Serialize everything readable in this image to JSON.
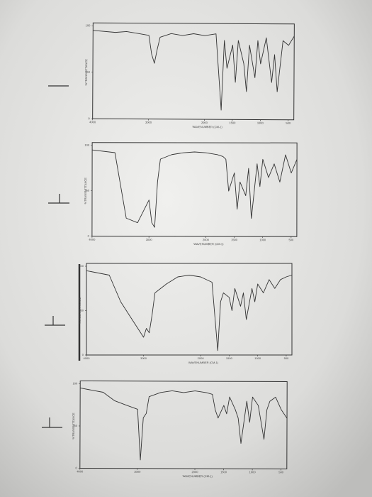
{
  "chart_data": [
    {
      "type": "line",
      "x_label": "WAVENUMBER (CM-1)",
      "y_label": "%TRANSMITTANCE",
      "color": "#333333",
      "x": [
        4000,
        3600,
        3400,
        3200,
        3000,
        2950,
        2900,
        2850,
        2800,
        2600,
        2400,
        2200,
        2000,
        1800,
        1700,
        1650,
        1600,
        1500,
        1450,
        1400,
        1300,
        1250,
        1200,
        1100,
        1050,
        1000,
        900,
        800,
        750,
        700,
        600,
        500,
        400
      ],
      "values": [
        95,
        93,
        94,
        92,
        90,
        70,
        60,
        75,
        88,
        92,
        90,
        92,
        90,
        92,
        10,
        85,
        55,
        80,
        40,
        85,
        60,
        30,
        80,
        45,
        85,
        60,
        88,
        40,
        70,
        30,
        85,
        80,
        90
      ],
      "xlim": [
        4000,
        400
      ],
      "ylim": [
        0,
        100
      ],
      "xticks": [
        4000,
        3000,
        2000,
        1500,
        1000,
        500
      ],
      "yticks": [
        0,
        50,
        100
      ]
    },
    {
      "type": "line",
      "x_label": "WAVENUMBER (CM-1)",
      "y_label": "%TRANSMITTANCE",
      "color": "#333333",
      "x": [
        4000,
        3600,
        3400,
        3200,
        3000,
        2950,
        2900,
        2850,
        2800,
        2600,
        2400,
        2200,
        2000,
        1800,
        1700,
        1650,
        1600,
        1500,
        1450,
        1400,
        1300,
        1250,
        1200,
        1100,
        1050,
        1000,
        900,
        800,
        750,
        700,
        600,
        500,
        400
      ],
      "values": [
        95,
        92,
        20,
        15,
        40,
        15,
        10,
        60,
        85,
        90,
        92,
        93,
        92,
        90,
        88,
        85,
        50,
        70,
        30,
        60,
        45,
        75,
        20,
        80,
        55,
        85,
        65,
        80,
        70,
        60,
        90,
        70,
        85
      ],
      "xlim": [
        4000,
        400
      ],
      "ylim": [
        0,
        100
      ],
      "xticks": [
        4000,
        3000,
        2000,
        1500,
        1000,
        500
      ],
      "yticks": [
        0,
        50,
        100
      ]
    },
    {
      "type": "line",
      "x_label": "WAVENUMBER (CM-1)",
      "y_label": "%TRANSMITTANCE",
      "color": "#333333",
      "x": [
        4000,
        3600,
        3400,
        3200,
        3000,
        2950,
        2900,
        2850,
        2800,
        2600,
        2400,
        2200,
        2000,
        1800,
        1700,
        1650,
        1600,
        1500,
        1450,
        1400,
        1300,
        1250,
        1200,
        1100,
        1050,
        1000,
        900,
        800,
        750,
        700,
        600,
        500,
        400
      ],
      "values": [
        95,
        90,
        60,
        40,
        20,
        30,
        25,
        45,
        70,
        80,
        88,
        90,
        88,
        82,
        5,
        60,
        70,
        65,
        50,
        75,
        55,
        70,
        40,
        75,
        60,
        80,
        70,
        85,
        80,
        75,
        85,
        88,
        90
      ],
      "xlim": [
        4000,
        400
      ],
      "ylim": [
        0,
        100
      ],
      "xticks": [
        4000,
        3000,
        2000,
        1500,
        1000,
        500
      ],
      "yticks": [
        0,
        50,
        100
      ]
    },
    {
      "type": "line",
      "x_label": "WAVENUMBER (CM-1)",
      "y_label": "%TRANSMITTANCE",
      "color": "#333333",
      "x": [
        4000,
        3600,
        3400,
        3200,
        3000,
        2950,
        2900,
        2850,
        2800,
        2600,
        2400,
        2200,
        2000,
        1800,
        1700,
        1650,
        1600,
        1500,
        1450,
        1400,
        1300,
        1250,
        1200,
        1100,
        1050,
        1000,
        900,
        800,
        750,
        700,
        600,
        500,
        400
      ],
      "values": [
        95,
        90,
        80,
        75,
        70,
        10,
        60,
        65,
        85,
        90,
        92,
        90,
        92,
        90,
        88,
        70,
        60,
        75,
        65,
        85,
        70,
        60,
        30,
        80,
        55,
        85,
        75,
        35,
        70,
        80,
        85,
        70,
        60
      ],
      "xlim": [
        4000,
        400
      ],
      "ylim": [
        0,
        100
      ],
      "xticks": [
        4000,
        3000,
        2000,
        1500,
        1000,
        500
      ],
      "yticks": [
        0,
        50,
        100
      ]
    }
  ]
}
